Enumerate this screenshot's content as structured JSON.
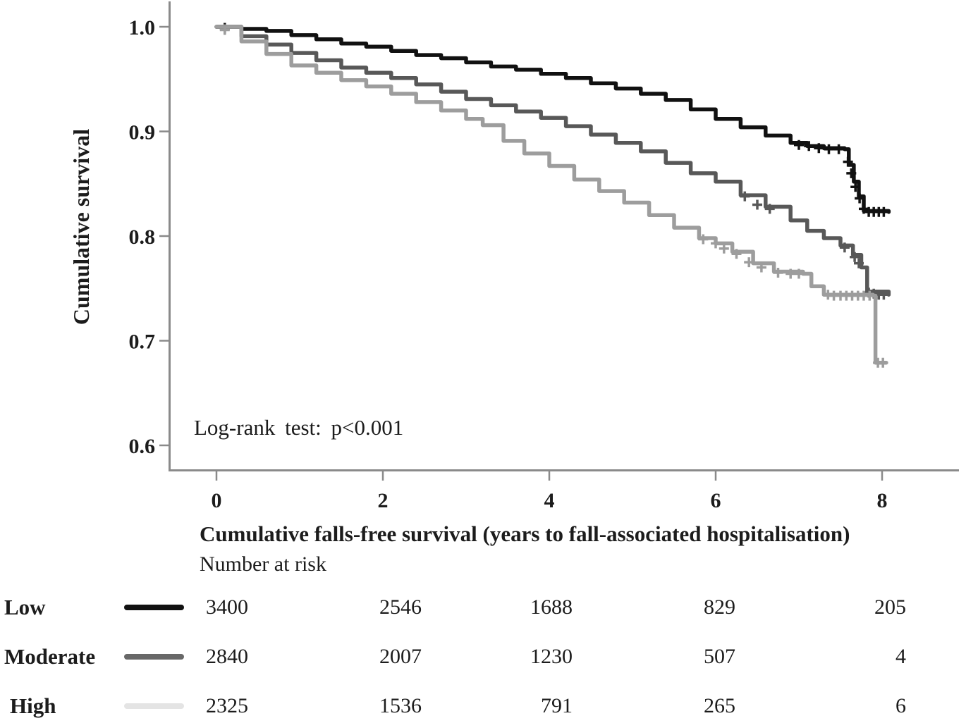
{
  "chart_data": {
    "type": "line",
    "subtype": "kaplan-meier-survival",
    "title": "",
    "xlabel": "Cumulative falls-free survival (years to fall-associated hospitalisation)",
    "ylabel": "Cumulative survival",
    "annotation": "Log-rank test: p<0.001",
    "xlim": [
      0,
      8.4
    ],
    "ylim": [
      0.58,
      1.0
    ],
    "x_ticks": [
      "0",
      "2",
      "4",
      "6",
      "8"
    ],
    "x_tick_values": [
      0,
      2,
      4,
      6,
      8
    ],
    "y_ticks": [
      "1.0",
      "0.9",
      "0.8",
      "0.7",
      "0.6"
    ],
    "y_tick_values": [
      1.0,
      0.9,
      0.8,
      0.7,
      0.6
    ],
    "grid": false,
    "colors": {
      "axis": "#8a8a8a",
      "text": "#1c1c1c",
      "low": "#111111",
      "moderate": "#585858",
      "high": "#9d9d9d",
      "high_legend": "#e4e4e4",
      "moderate_legend": "#686868"
    },
    "series": [
      {
        "name": "Low",
        "color": "#111111",
        "line_width": 5.5,
        "points": [
          [
            0,
            1.0
          ],
          [
            0.3,
            0.998
          ],
          [
            0.6,
            0.996
          ],
          [
            0.9,
            0.992
          ],
          [
            1.2,
            0.988
          ],
          [
            1.5,
            0.984
          ],
          [
            1.8,
            0.981
          ],
          [
            2.1,
            0.977
          ],
          [
            2.4,
            0.973
          ],
          [
            2.7,
            0.97
          ],
          [
            3.0,
            0.966
          ],
          [
            3.3,
            0.962
          ],
          [
            3.6,
            0.959
          ],
          [
            3.9,
            0.955
          ],
          [
            4.2,
            0.951
          ],
          [
            4.5,
            0.946
          ],
          [
            4.8,
            0.941
          ],
          [
            5.1,
            0.936
          ],
          [
            5.4,
            0.93
          ],
          [
            5.7,
            0.921
          ],
          [
            6.0,
            0.912
          ],
          [
            6.3,
            0.904
          ],
          [
            6.6,
            0.896
          ],
          [
            6.9,
            0.889
          ],
          [
            7.1,
            0.886
          ],
          [
            7.3,
            0.884
          ],
          [
            7.55,
            0.883
          ],
          [
            7.6,
            0.868
          ],
          [
            7.66,
            0.852
          ],
          [
            7.72,
            0.838
          ],
          [
            7.78,
            0.824
          ],
          [
            8.08,
            0.823
          ]
        ],
        "censor_marks": [
          [
            0.1,
            0.999
          ],
          [
            7.0,
            0.887
          ],
          [
            7.12,
            0.886
          ],
          [
            7.24,
            0.884
          ],
          [
            7.36,
            0.883
          ],
          [
            7.48,
            0.883
          ],
          [
            7.59,
            0.871
          ],
          [
            7.63,
            0.86
          ],
          [
            7.68,
            0.847
          ],
          [
            7.73,
            0.836
          ],
          [
            7.78,
            0.826
          ],
          [
            7.84,
            0.823
          ],
          [
            7.9,
            0.823
          ],
          [
            7.96,
            0.823
          ],
          [
            8.02,
            0.823
          ]
        ]
      },
      {
        "name": "Moderate",
        "color": "#585858",
        "line_width": 5.5,
        "points": [
          [
            0,
            1.0
          ],
          [
            0.3,
            0.991
          ],
          [
            0.6,
            0.983
          ],
          [
            0.9,
            0.975
          ],
          [
            1.2,
            0.968
          ],
          [
            1.5,
            0.961
          ],
          [
            1.8,
            0.956
          ],
          [
            2.1,
            0.951
          ],
          [
            2.4,
            0.945
          ],
          [
            2.7,
            0.938
          ],
          [
            3.0,
            0.931
          ],
          [
            3.3,
            0.925
          ],
          [
            3.6,
            0.919
          ],
          [
            3.9,
            0.913
          ],
          [
            4.2,
            0.905
          ],
          [
            4.5,
            0.897
          ],
          [
            4.8,
            0.889
          ],
          [
            5.1,
            0.881
          ],
          [
            5.4,
            0.87
          ],
          [
            5.7,
            0.86
          ],
          [
            6.0,
            0.852
          ],
          [
            6.3,
            0.839
          ],
          [
            6.6,
            0.828
          ],
          [
            6.9,
            0.815
          ],
          [
            7.1,
            0.805
          ],
          [
            7.3,
            0.798
          ],
          [
            7.5,
            0.791
          ],
          [
            7.65,
            0.782
          ],
          [
            7.75,
            0.77
          ],
          [
            7.82,
            0.747
          ],
          [
            8.08,
            0.744
          ]
        ],
        "censor_marks": [
          [
            0.1,
            0.998
          ],
          [
            6.35,
            0.838
          ],
          [
            6.5,
            0.83
          ],
          [
            6.65,
            0.826
          ],
          [
            7.55,
            0.789
          ],
          [
            7.67,
            0.78
          ],
          [
            7.72,
            0.774
          ],
          [
            7.84,
            0.746
          ],
          [
            7.9,
            0.745
          ],
          [
            7.96,
            0.744
          ],
          [
            8.02,
            0.744
          ]
        ]
      },
      {
        "name": "High",
        "color": "#9d9d9d",
        "legend_color": "#e4e4e4",
        "line_width": 5.5,
        "points": [
          [
            0,
            1.0
          ],
          [
            0.3,
            0.986
          ],
          [
            0.6,
            0.974
          ],
          [
            0.9,
            0.963
          ],
          [
            1.2,
            0.956
          ],
          [
            1.5,
            0.949
          ],
          [
            1.8,
            0.943
          ],
          [
            2.1,
            0.936
          ],
          [
            2.4,
            0.928
          ],
          [
            2.7,
            0.92
          ],
          [
            3.0,
            0.912
          ],
          [
            3.2,
            0.906
          ],
          [
            3.45,
            0.891
          ],
          [
            3.7,
            0.879
          ],
          [
            4.0,
            0.867
          ],
          [
            4.3,
            0.854
          ],
          [
            4.6,
            0.843
          ],
          [
            4.9,
            0.832
          ],
          [
            5.2,
            0.82
          ],
          [
            5.5,
            0.808
          ],
          [
            5.8,
            0.798
          ],
          [
            6.0,
            0.793
          ],
          [
            6.2,
            0.785
          ],
          [
            6.45,
            0.774
          ],
          [
            6.7,
            0.766
          ],
          [
            7.05,
            0.764
          ],
          [
            7.15,
            0.752
          ],
          [
            7.3,
            0.744
          ],
          [
            7.89,
            0.743
          ],
          [
            7.92,
            0.679
          ],
          [
            8.05,
            0.679
          ]
        ],
        "censor_marks": [
          [
            0.1,
            0.997
          ],
          [
            5.85,
            0.797
          ],
          [
            6.0,
            0.793
          ],
          [
            6.1,
            0.788
          ],
          [
            6.25,
            0.783
          ],
          [
            6.4,
            0.775
          ],
          [
            6.55,
            0.77
          ],
          [
            6.75,
            0.765
          ],
          [
            6.9,
            0.764
          ],
          [
            7.0,
            0.764
          ],
          [
            7.35,
            0.744
          ],
          [
            7.42,
            0.743
          ],
          [
            7.5,
            0.743
          ],
          [
            7.57,
            0.743
          ],
          [
            7.64,
            0.743
          ],
          [
            7.71,
            0.743
          ],
          [
            7.78,
            0.743
          ],
          [
            7.85,
            0.743
          ],
          [
            7.95,
            0.679
          ],
          [
            8.01,
            0.679
          ]
        ]
      }
    ],
    "number_at_risk": {
      "label": "Number at risk",
      "times": [
        0,
        2,
        4,
        6,
        8
      ],
      "rows": [
        {
          "name": "Low",
          "counts": [
            "3400",
            "2546",
            "1688",
            "829",
            "205"
          ]
        },
        {
          "name": "Moderate",
          "counts": [
            "2840",
            "2007",
            "1230",
            "507",
            "4"
          ]
        },
        {
          "name": "High",
          "counts": [
            "2325",
            "1536",
            "791",
            "265",
            "6"
          ]
        }
      ]
    }
  }
}
